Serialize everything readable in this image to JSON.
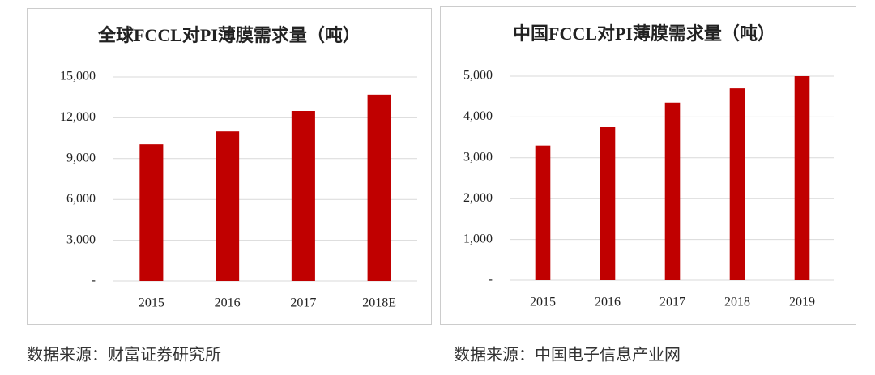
{
  "chart_data": [
    {
      "type": "bar",
      "title": "全球FCCL对PI薄膜需求量（吨）",
      "categories": [
        "2015",
        "2016",
        "2017",
        "2018E"
      ],
      "values": [
        10050,
        11000,
        12500,
        13700
      ],
      "color": "#c00000",
      "ylim": [
        0,
        15000
      ],
      "yticks": [
        {
          "value": 0,
          "label": "-"
        },
        {
          "value": 3000,
          "label": "3,000"
        },
        {
          "value": 6000,
          "label": "6,000"
        },
        {
          "value": 9000,
          "label": "9,000"
        },
        {
          "value": 12000,
          "label": "12,000"
        },
        {
          "value": 15000,
          "label": "15,000"
        }
      ],
      "grid": true
    },
    {
      "type": "bar",
      "title": "中国FCCL对PI薄膜需求量（吨）",
      "categories": [
        "2015",
        "2016",
        "2017",
        "2018",
        "2019"
      ],
      "values": [
        3300,
        3750,
        4350,
        4700,
        5000
      ],
      "color": "#c00000",
      "ylim": [
        0,
        5000
      ],
      "yticks": [
        {
          "value": 0,
          "label": "-"
        },
        {
          "value": 1000,
          "label": "1,000"
        },
        {
          "value": 2000,
          "label": "2,000"
        },
        {
          "value": 3000,
          "label": "3,000"
        },
        {
          "value": 4000,
          "label": "4,000"
        },
        {
          "value": 5000,
          "label": "5,000"
        }
      ],
      "grid": true
    }
  ],
  "sources": [
    "数据来源：财富证券研究所",
    "数据来源：中国电子信息产业网"
  ]
}
